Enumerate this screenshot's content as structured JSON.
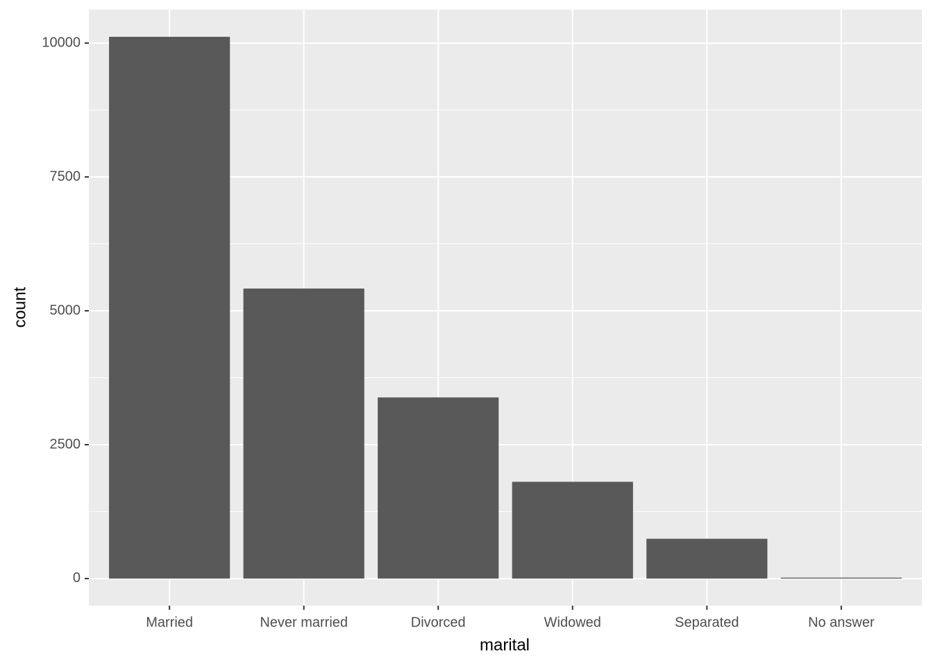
{
  "chart_data": {
    "type": "bar",
    "x_label": "marital",
    "y_label": "count",
    "categories": [
      "Married",
      "Never married",
      "Divorced",
      "Widowed",
      "Separated",
      "No answer"
    ],
    "values": [
      10117,
      5416,
      3383,
      1807,
      743,
      17
    ],
    "color": "#595959",
    "ylim": [
      -506,
      10623
    ],
    "yticks": [
      0,
      2500,
      5000,
      7500,
      10000
    ],
    "grid": true
  }
}
